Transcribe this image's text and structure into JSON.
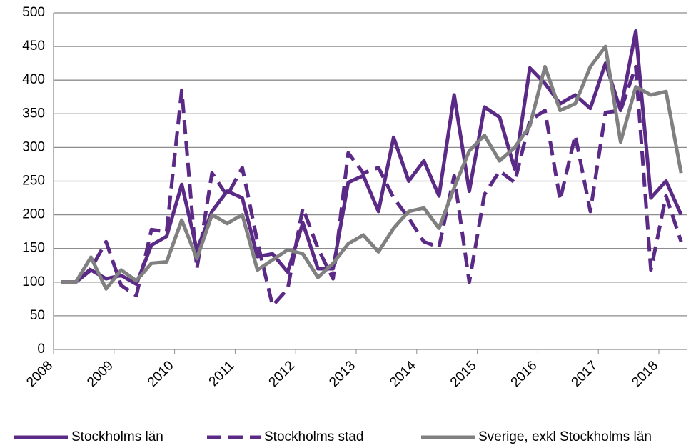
{
  "chart_data": {
    "type": "line",
    "categories": [
      "2008",
      null,
      null,
      null,
      "2009",
      null,
      null,
      null,
      "2010",
      null,
      null,
      null,
      "2011",
      null,
      null,
      null,
      "2012",
      null,
      null,
      null,
      "2013",
      null,
      null,
      null,
      "2014",
      null,
      null,
      null,
      "2015",
      null,
      null,
      null,
      "2016",
      null,
      null,
      null,
      "2017",
      null,
      null,
      null,
      "2018",
      null
    ],
    "series": [
      {
        "name": "Stockholms län",
        "color": "#5b2a86",
        "dash": false,
        "values": [
          100,
          100,
          118,
          105,
          110,
          97,
          155,
          168,
          245,
          148,
          205,
          235,
          225,
          138,
          142,
          115,
          188,
          120,
          120,
          248,
          258,
          205,
          315,
          250,
          280,
          228,
          378,
          235,
          360,
          345,
          268,
          418,
          395,
          365,
          378,
          358,
          425,
          355,
          473,
          225,
          250,
          200
        ]
      },
      {
        "name": "Stockholms stad",
        "color": "#5b2a86",
        "dash": true,
        "values": [
          100,
          100,
          120,
          160,
          95,
          80,
          178,
          175,
          385,
          120,
          262,
          228,
          270,
          160,
          65,
          90,
          210,
          150,
          105,
          292,
          262,
          270,
          225,
          195,
          160,
          152,
          258,
          100,
          230,
          265,
          248,
          340,
          355,
          222,
          318,
          205,
          352,
          355,
          420,
          118,
          228,
          160
        ]
      },
      {
        "name": "Sverige, exkl Stockholms län",
        "color": "#808080",
        "dash": false,
        "values": [
          100,
          100,
          137,
          90,
          118,
          102,
          128,
          130,
          192,
          135,
          200,
          187,
          200,
          118,
          133,
          148,
          142,
          107,
          128,
          157,
          170,
          145,
          180,
          205,
          210,
          180,
          240,
          295,
          318,
          280,
          300,
          332,
          420,
          355,
          365,
          420,
          450,
          308,
          390,
          378,
          383,
          262
        ]
      }
    ],
    "ylim": [
      0,
      500
    ],
    "yticks": [
      0,
      50,
      100,
      150,
      200,
      250,
      300,
      350,
      400,
      450,
      500
    ],
    "grid": true
  }
}
